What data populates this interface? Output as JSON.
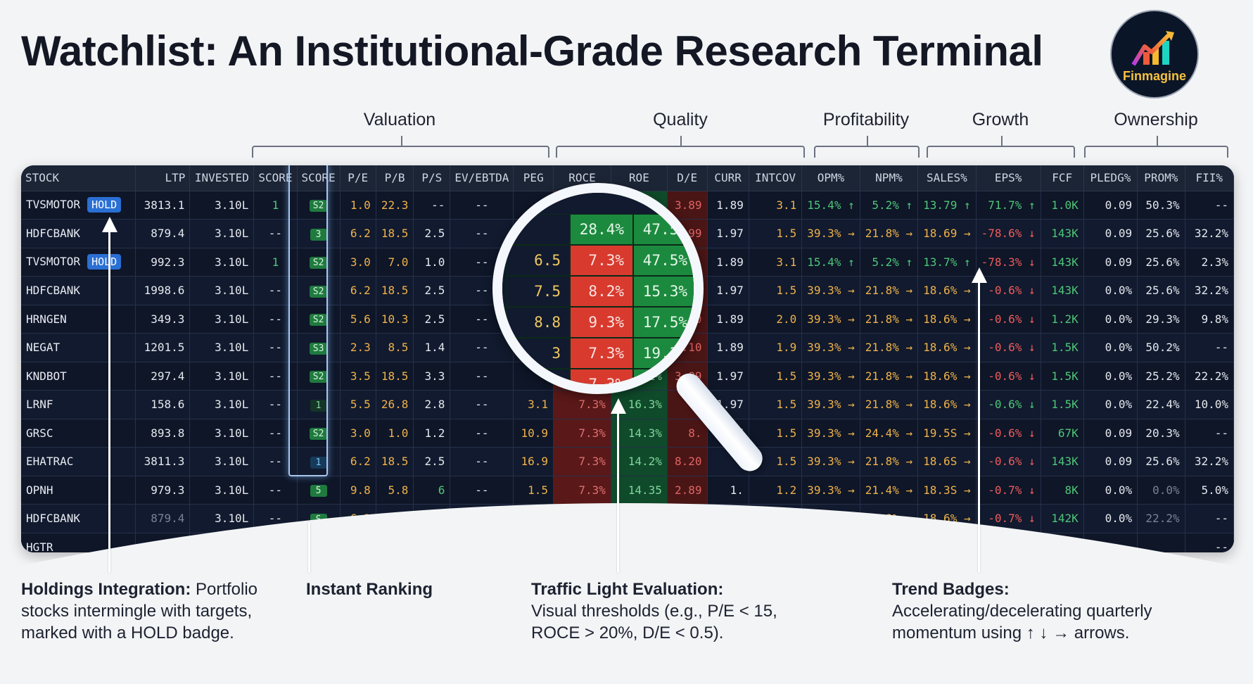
{
  "header": {
    "title": "Watchlist: An Institutional-Grade Research Terminal",
    "logo_text": "Finmagine",
    "logo_icon": "rising-bar-chart-arrow-icon"
  },
  "groups": [
    {
      "label": "Valuation"
    },
    {
      "label": "Quality"
    },
    {
      "label": "Profitability"
    },
    {
      "label": "Growth"
    },
    {
      "label": "Ownership"
    }
  ],
  "table": {
    "columns": [
      "STOCK",
      "LTP",
      "INVESTED",
      "SCORE",
      "SCORE",
      "P/E",
      "P/B",
      "P/S",
      "EV/EBTDA",
      "PEG",
      "ROCE",
      "ROE",
      "D/E",
      "CURR",
      "INTCOV",
      "OPM%",
      "NPM%",
      "SALES%",
      "EPS%",
      "FCF",
      "PLEDG%",
      "PROM%",
      "FII%"
    ],
    "hold_label": "HOLD",
    "rows": [
      {
        "stock": "TVSMOTOR",
        "hold": true,
        "ltp": "3813.1",
        "invested": "3.10L",
        "score1": "1",
        "score2": "S2",
        "pe": "1.0",
        "pb": "22.3",
        "ps": "--",
        "ev": "--",
        "peg": "--",
        "roce": "",
        "roe": "",
        "de": "3.89",
        "curr": "1.89",
        "intcov": "3.1",
        "opm": "15.4% ↑",
        "npm": "5.2% ↑",
        "sales": "13.79 ↑",
        "eps": "71.7% ↑",
        "fcf": "1.0K",
        "pledg": "0.09",
        "prom": "50.3%",
        "fii": "--"
      },
      {
        "stock": "HDFCBANK",
        "hold": false,
        "ltp": "879.4",
        "invested": "3.10L",
        "score1": "--",
        "score2": "3",
        "pe": "6.2",
        "pb": "18.5",
        "ps": "2.5",
        "ev": "--",
        "peg": "",
        "roce": "28.4%",
        "roe": "47.5%",
        "de": "99",
        "curr": "1.97",
        "intcov": "1.5",
        "opm": "39.3% →",
        "npm": "21.8% →",
        "sales": "18.69 →",
        "eps": "-78.6% ↓",
        "fcf": "143K",
        "pledg": "0.09",
        "prom": "25.6%",
        "fii": "32.2%"
      },
      {
        "stock": "TVSMOTOR",
        "hold": true,
        "ltp": "992.3",
        "invested": "3.10L",
        "score1": "1",
        "score2": "S2",
        "pe": "3.0",
        "pb": "7.0",
        "ps": "1.0",
        "ev": "--",
        "peg": "6.5",
        "roce": "7.3%",
        "roe": "47.5%",
        "de": "3.",
        "curr": "1.89",
        "intcov": "3.1",
        "opm": "15.4% ↑",
        "npm": "5.2% ↑",
        "sales": "13.7% ↑",
        "eps": "-78.3% ↓",
        "fcf": "143K",
        "pledg": "0.09",
        "prom": "25.6%",
        "fii": "2.3%"
      },
      {
        "stock": "HDFCBANK",
        "hold": false,
        "ltp": "1998.6",
        "invested": "3.10L",
        "score1": "--",
        "score2": "S2",
        "pe": "6.2",
        "pb": "18.5",
        "ps": "2.5",
        "ev": "--",
        "peg": "7.5",
        "roce": "8.2%",
        "roe": "15.3%",
        "de": "1.5",
        "curr": "1.97",
        "intcov": "1.5",
        "opm": "39.3% →",
        "npm": "21.8% →",
        "sales": "18.6% →",
        "eps": "-0.6% ↓",
        "fcf": "143K",
        "pledg": "0.0%",
        "prom": "25.6%",
        "fii": "32.2%"
      },
      {
        "stock": "HRNGEN",
        "hold": false,
        "ltp": "349.3",
        "invested": "3.10L",
        "score1": "--",
        "score2": "S2",
        "pe": "5.6",
        "pb": "10.3",
        "ps": "2.5",
        "ev": "--",
        "peg": "8.8",
        "roce": "9.3%",
        "roe": "17.5%",
        "de": "1.0",
        "curr": "1.89",
        "intcov": "2.0",
        "opm": "39.3% →",
        "npm": "21.8% →",
        "sales": "18.6% →",
        "eps": "-0.6% ↓",
        "fcf": "1.2K",
        "pledg": "0.0%",
        "prom": "29.3%",
        "fii": "9.8%"
      },
      {
        "stock": "NEGAT",
        "hold": false,
        "ltp": "1201.5",
        "invested": "3.10L",
        "score1": "--",
        "score2": "S3",
        "pe": "2.3",
        "pb": "8.5",
        "ps": "1.4",
        "ev": "--",
        "peg": "3",
        "roce": "7.3%",
        "roe": "19.3%",
        "de": "2.10",
        "curr": "1.89",
        "intcov": "1.9",
        "opm": "39.3% →",
        "npm": "21.8% →",
        "sales": "18.6% →",
        "eps": "-0.6% ↓",
        "fcf": "1.5K",
        "pledg": "0.0%",
        "prom": "50.2%",
        "fii": "--"
      },
      {
        "stock": "KNDBOT",
        "hold": false,
        "ltp": "297.4",
        "invested": "3.10L",
        "score1": "--",
        "score2": "S2",
        "pe": "3.5",
        "pb": "18.5",
        "ps": "3.3",
        "ev": "--",
        "peg": "",
        "roce": "7.3%",
        "roe": "16.1%",
        "de": "3.89",
        "curr": "1.97",
        "intcov": "1.5",
        "opm": "39.3% →",
        "npm": "21.8% →",
        "sales": "18.6% →",
        "eps": "-0.6% ↓",
        "fcf": "1.5K",
        "pledg": "0.0%",
        "prom": "25.2%",
        "fii": "22.2%"
      },
      {
        "stock": "LRNF",
        "hold": false,
        "ltp": "158.6",
        "invested": "3.10L",
        "score1": "--",
        "score2": "1",
        "pe": "5.5",
        "pb": "26.8",
        "ps": "2.8",
        "ev": "--",
        "peg": "3.1",
        "roce": "7.3%",
        "roe": "16.3%",
        "de": "",
        "curr": "1.97",
        "intcov": "1.5",
        "opm": "39.3% →",
        "npm": "21.8% →",
        "sales": "18.6% →",
        "eps": "-0.6% ↓",
        "fcf": "1.5K",
        "pledg": "0.0%",
        "prom": "22.4%",
        "fii": "10.0%"
      },
      {
        "stock": "GRSC",
        "hold": false,
        "ltp": "893.8",
        "invested": "3.10L",
        "score1": "--",
        "score2": "S2",
        "pe": "3.0",
        "pb": "1.0",
        "ps": "1.2",
        "ev": "--",
        "peg": "10.9",
        "roce": "7.3%",
        "roe": "14.3%",
        "de": "8.",
        "curr": "1.97",
        "intcov": "1.5",
        "opm": "39.3% →",
        "npm": "24.4% →",
        "sales": "19.5S →",
        "eps": "-0.6% ↓",
        "fcf": "67K",
        "pledg": "0.09",
        "prom": "20.3%",
        "fii": "--"
      },
      {
        "stock": "EHATRAC",
        "hold": false,
        "ltp": "3811.3",
        "invested": "3.10L",
        "score1": "--",
        "score2": "1",
        "pe": "6.2",
        "pb": "18.5",
        "ps": "2.5",
        "ev": "--",
        "peg": "16.9",
        "roce": "7.3%",
        "roe": "14.2%",
        "de": "8.20",
        "curr": "",
        "intcov": "1.5",
        "opm": "39.3% →",
        "npm": "21.8% →",
        "sales": "18.6S →",
        "eps": "-0.6% ↓",
        "fcf": "143K",
        "pledg": "0.09",
        "prom": "25.6%",
        "fii": "32.2%"
      },
      {
        "stock": "OPNH",
        "hold": false,
        "ltp": "979.3",
        "invested": "3.10L",
        "score1": "--",
        "score2": "5",
        "pe": "9.8",
        "pb": "5.8",
        "ps": "6",
        "ev": "--",
        "peg": "1.5",
        "roce": "7.3%",
        "roe": "14.35",
        "de": "2.89",
        "curr": "1.",
        "intcov": "1.2",
        "opm": "39.3% →",
        "npm": "21.4% →",
        "sales": "18.3S →",
        "eps": "-0.7% ↓",
        "fcf": "8K",
        "pledg": "0.0%",
        "prom": "0.0%",
        "fii": "5.0%"
      },
      {
        "stock": "HDFCBANK",
        "hold": false,
        "ltp": "879.4",
        "invested": "3.10L",
        "score1": "--",
        "score2": "S",
        "pe": "6.2",
        "pb": "16.5",
        "ps": "2.5",
        "ev": "",
        "peg": "",
        "roce": "",
        "roe": "",
        "de": "",
        "curr": "",
        "intcov": "",
        "opm": "39.3% →",
        "npm": "21.8% →",
        "sales": "18.6% →",
        "eps": "-0.7% ↓",
        "fcf": "142K",
        "pledg": "0.0%",
        "prom": "22.2%",
        "fii": "--"
      },
      {
        "stock": "HGTR",
        "hold": false,
        "ltp": "",
        "invested": "",
        "score1": "",
        "score2": "",
        "pe": "",
        "pb": "",
        "ps": "",
        "ev": "",
        "peg": "",
        "roce": "",
        "roe": "",
        "de": "",
        "curr": "",
        "intcov": "",
        "opm": "",
        "npm": "",
        "sales": "",
        "eps": "",
        "fcf": "",
        "pledg": "",
        "prom": "",
        "fii": "--"
      }
    ]
  },
  "magnifier": {
    "cells": [
      [
        "",
        "28.4%",
        "47.5%"
      ],
      [
        "6.5",
        "7.3%",
        "47.5%"
      ],
      [
        "7.5",
        "8.2%",
        "15.3%"
      ],
      [
        "8.8",
        "9.3%",
        "17.5%"
      ],
      [
        "3",
        "7.3%",
        "19.3%"
      ],
      [
        "",
        "7.3%",
        "16.1%"
      ]
    ]
  },
  "callouts": [
    {
      "title": "Holdings Integration:",
      "body": " Portfolio stocks intermingle with targets, marked with a HOLD badge."
    },
    {
      "title": "Instant Ranking",
      "body": ""
    },
    {
      "title": "Traffic Light Evaluation:",
      "body": "Visual thresholds (e.g., P/E < 15, ROCE > 20%, D/E < 0.5)."
    },
    {
      "title": "Trend Badges:",
      "body": "Accelerating/decelerating quarterly momentum using ↑ ↓ → arrows."
    }
  ],
  "colors": {
    "hold_badge": "#2a6fd4",
    "score_badge": "#1f7a3e",
    "traffic_red": "#d83a2e",
    "traffic_green": "#1c8a3e",
    "trend_up": "#4ec777",
    "trend_down": "#ef5b5b",
    "trend_flat": "#f0c862"
  }
}
